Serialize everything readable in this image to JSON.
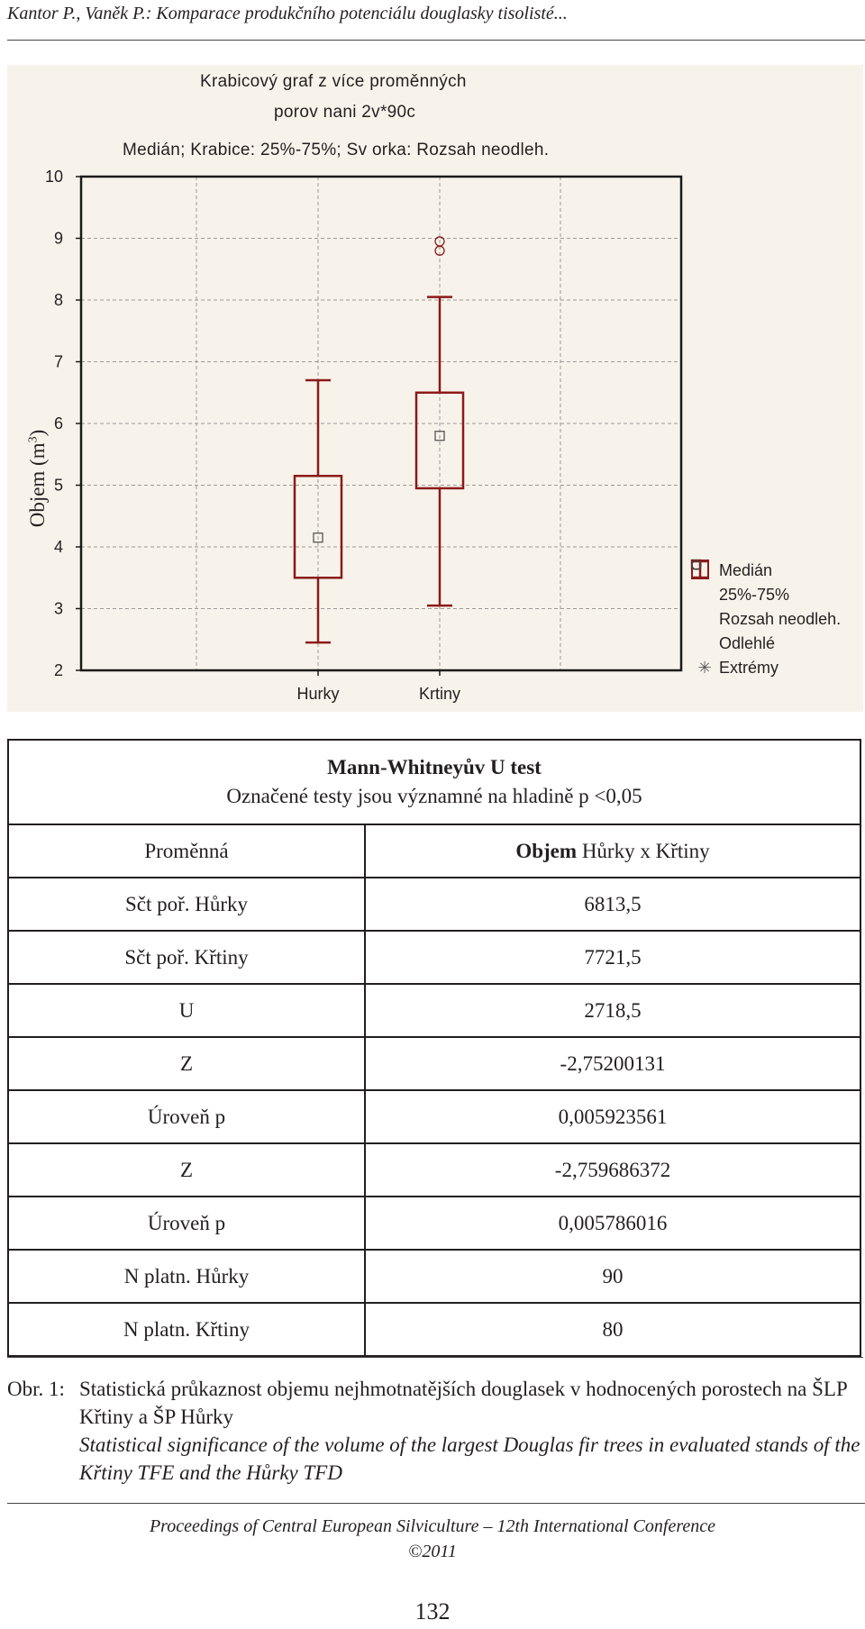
{
  "header": {
    "running_title": "Kantor P., Vaněk P.: Komparace produkčního potenciálu douglasky tisolisté..."
  },
  "chart_data": {
    "type": "box",
    "title": "Krabicový graf z více proměnných",
    "subtitle": "porov nani 2v*90c",
    "caption": "Medián; Krabice: 25%-75%; Sv orka: Rozsah neodleh.",
    "ylabel": "Objem (m3)",
    "ylim": [
      2,
      10
    ],
    "yticks": [
      "2",
      "3",
      "4",
      "5",
      "6",
      "7",
      "8",
      "9",
      "10"
    ],
    "categories": [
      "Hurky",
      "Krtiny"
    ],
    "series": [
      {
        "category": "Hurky",
        "median": 4.15,
        "q1": 3.5,
        "q3": 5.15,
        "whisker_low": 2.45,
        "whisker_high": 6.7,
        "outliers": []
      },
      {
        "category": "Krtiny",
        "median": 5.8,
        "q1": 4.95,
        "q3": 6.5,
        "whisker_low": 3.05,
        "whisker_high": 8.05,
        "outliers": [
          8.8,
          8.95
        ]
      }
    ],
    "grid": true,
    "legend_position": "bottom-right",
    "legend": [
      "Medián",
      "25%-75%",
      "Rozsah neodleh.",
      "Odlehlé",
      "Extrémy"
    ],
    "colors": {
      "box": "#8b1a1a",
      "grid": "#9a9a9a",
      "background": "#f8f3ea"
    }
  },
  "table": {
    "title": "Mann-Whitneyův U test",
    "subtitle": "Označené testy jsou významné na hladině p <0,05",
    "col1_header": "Proměnná",
    "col2_header_bold": "Objem",
    "col2_header_rest": " Hůrky x Křtiny",
    "rows": [
      {
        "label": "Sčt poř. Hůrky",
        "value": "6813,5"
      },
      {
        "label": "Sčt poř. Křtiny",
        "value": "7721,5"
      },
      {
        "label": "U",
        "value": "2718,5"
      },
      {
        "label": "Z",
        "value": "-2,75200131"
      },
      {
        "label": "Úroveň p",
        "value": "0,005923561"
      },
      {
        "label": "Z",
        "value": "-2,759686372"
      },
      {
        "label": "Úroveň p",
        "value": "0,005786016"
      },
      {
        "label": "N platn. Hůrky",
        "value": "90"
      },
      {
        "label": "N platn. Křtiny",
        "value": "80"
      }
    ]
  },
  "figure_caption": {
    "label": "Obr. 1:",
    "czech": "Statistická průkaznost objemu nejhmotnatějších douglasek v hodnocených porostech na ŠLP Křtiny a ŠP Hůrky",
    "english": "Statistical significance of the volume of the largest Douglas fir trees in evaluated stands of the Křtiny TFE and the Hůrky TFD"
  },
  "footer": {
    "line1": "Proceedings of Central European Silviculture – 12th International Conference",
    "line2": "©2011"
  },
  "page_number": "132"
}
